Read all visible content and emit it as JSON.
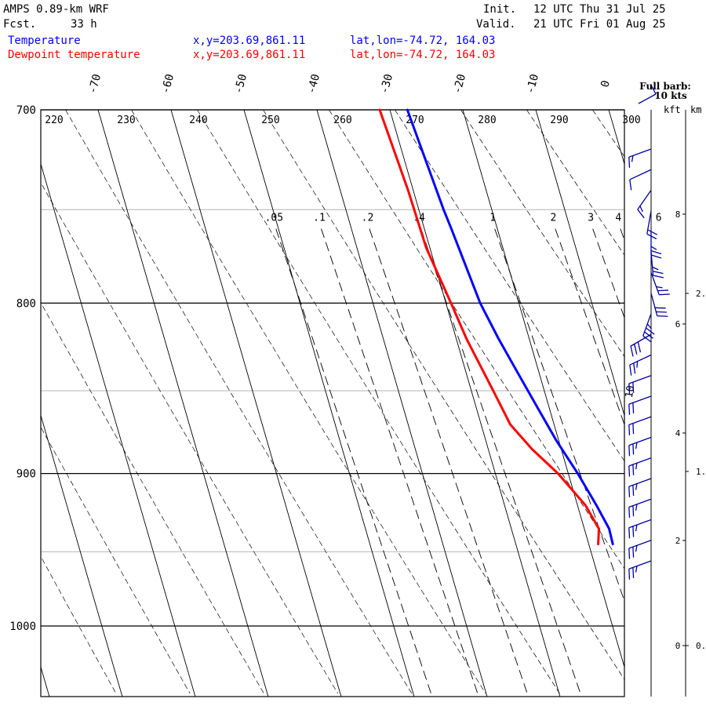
{
  "header": {
    "model": "AMPS 0.89-km WRF",
    "fcst_label": "Fcst.",
    "fcst_value": "33 h",
    "init_label": "Init.",
    "init_value": "12 UTC Thu 31 Jul 25",
    "valid_label": "Valid.",
    "valid_value": "21 UTC Fri 01 Aug 25",
    "temp_label": "Temperature",
    "dew_label": "Dewpoint temperature",
    "xy": "x,y=203.69,861.11",
    "latlon": "lat,lon=-74.72, 164.03"
  },
  "colors": {
    "temperature": "#0000ff",
    "dewpoint": "#ff0000",
    "barbs": "#0000a0",
    "header_text": "#000000"
  },
  "barb_legend": {
    "line1": "Full barb:",
    "line2": "10 kts"
  },
  "height_axis": {
    "kft_label": "kft",
    "km_label": "km",
    "kft_ticks": [
      "8",
      "6",
      "4",
      "2",
      "0"
    ],
    "km_ticks": [
      "2.",
      "1.",
      "0."
    ]
  },
  "chart_data": {
    "type": "line",
    "title": "",
    "xlabel": "",
    "ylabel": "",
    "y_scale": "log-pressure",
    "grid": true,
    "pressure_ticks": [
      700,
      800,
      900,
      1000
    ],
    "pressure_range_hpa": [
      700,
      1045
    ],
    "temperature_ticks_c": [
      -70,
      -60,
      -50,
      -40,
      -30,
      -20,
      -10,
      0
    ],
    "dry_adiabat_labels_k": [
      220,
      230,
      240,
      250,
      260,
      270,
      280,
      290,
      300
    ],
    "mixing_ratio_labels": [
      ".05",
      ".1",
      ".2",
      ".4",
      "1",
      "2",
      "3",
      "4",
      "6",
      "10"
    ],
    "series": [
      {
        "name": "Temperature",
        "color": "#0000ff",
        "pressure_hpa": [
          700,
          750,
          760,
          800,
          820,
          840,
          860,
          880,
          900,
          920,
          935,
          945
        ],
        "temp_c": [
          -27.6,
          -26.6,
          -26.3,
          -25.3,
          -24.2,
          -22.9,
          -21.6,
          -20.3,
          -18.7,
          -17.4,
          -16.6,
          -16.7
        ]
      },
      {
        "name": "Dewpoint temperature",
        "color": "#ff0000",
        "pressure_hpa": [
          700,
          740,
          770,
          800,
          820,
          850,
          870,
          885,
          900,
          920,
          935,
          945
        ],
        "temp_c": [
          -31.4,
          -30.7,
          -30.5,
          -29.3,
          -28.6,
          -27.0,
          -26.0,
          -24.0,
          -21.4,
          -18.9,
          -18.0,
          -18.7
        ]
      }
    ],
    "wind_barbs": {
      "direction_deg": [
        250,
        245,
        215,
        190,
        180,
        175,
        160,
        165,
        200,
        240,
        245,
        250,
        250,
        250,
        250,
        250,
        250,
        250,
        250,
        250,
        250
      ],
      "speed_kts": [
        15,
        10,
        15,
        20,
        25,
        25,
        25,
        30,
        35,
        30,
        25,
        20,
        20,
        20,
        25,
        25,
        25,
        25,
        25,
        25,
        25
      ]
    }
  }
}
